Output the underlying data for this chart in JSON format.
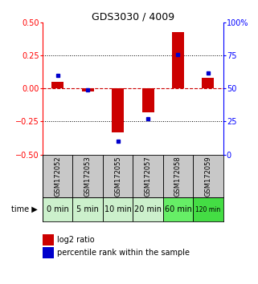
{
  "title": "GDS3030 / 4009",
  "samples": [
    "GSM172052",
    "GSM172053",
    "GSM172055",
    "GSM172057",
    "GSM172058",
    "GSM172059"
  ],
  "time_labels": [
    "0 min",
    "5 min",
    "10 min",
    "20 min",
    "60 min",
    "120 min"
  ],
  "log2_ratio": [
    0.05,
    -0.02,
    -0.33,
    -0.18,
    0.43,
    0.08
  ],
  "percentile_rank": [
    60,
    49,
    10,
    27,
    76,
    62
  ],
  "ylim_left": [
    -0.5,
    0.5
  ],
  "ylim_right": [
    0,
    100
  ],
  "yticks_left": [
    -0.5,
    -0.25,
    0,
    0.25,
    0.5
  ],
  "yticks_right": [
    0,
    25,
    50,
    75,
    100
  ],
  "bar_color": "#cc0000",
  "dot_color": "#0000cc",
  "bg_gray": "#c8c8c8",
  "green_colors": [
    "#ccf0cc",
    "#ccf0cc",
    "#ccf0cc",
    "#ccf0cc",
    "#66ee66",
    "#44dd44"
  ],
  "zero_line_color": "#cc0000",
  "dotted_color": "#000000",
  "bar_width": 0.4,
  "title_fontsize": 9,
  "tick_fontsize": 7,
  "label_fontsize": 6,
  "time_fontsize": 7,
  "legend_fontsize": 7
}
